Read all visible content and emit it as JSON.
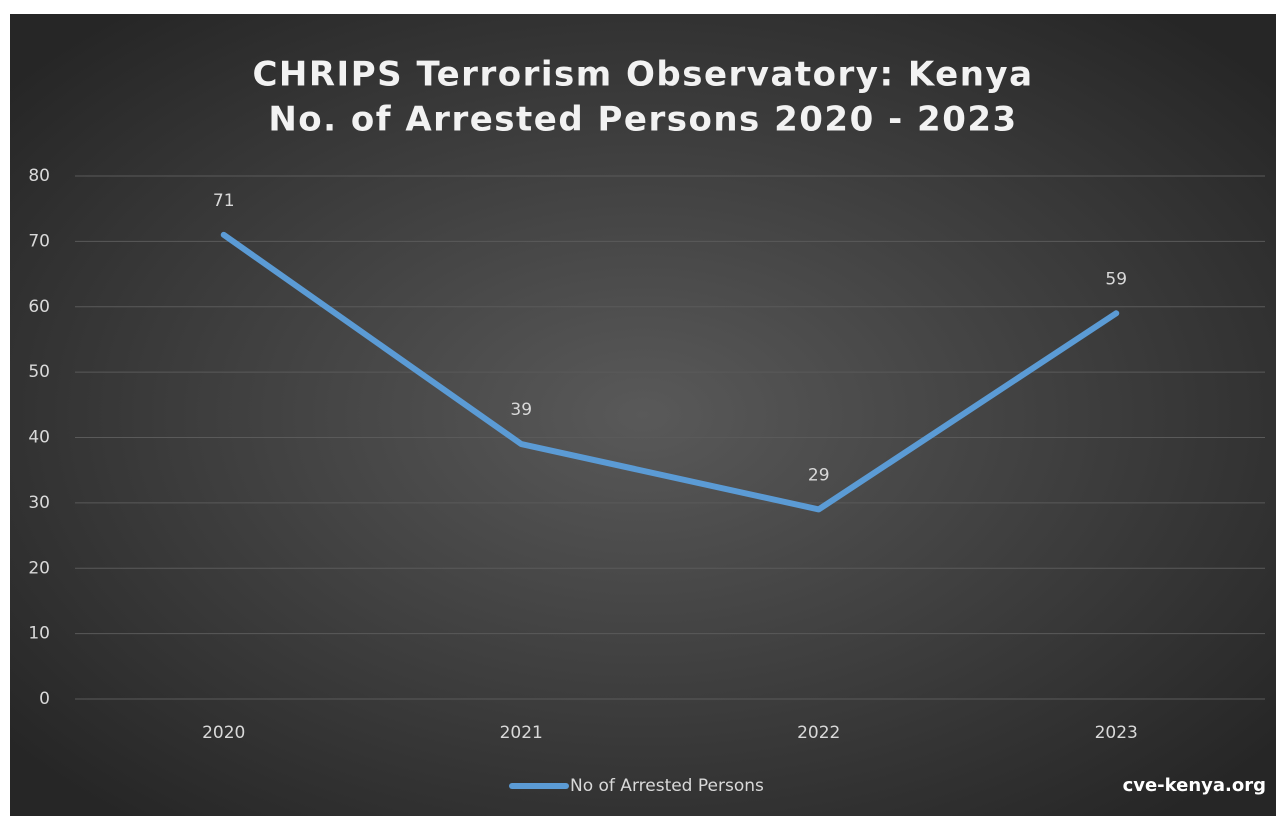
{
  "chart_data": {
    "type": "line",
    "title": [
      "CHRIPS Terrorism Observatory: Kenya",
      "No. of Arrested Persons 2020 - 2023"
    ],
    "categories": [
      "2020",
      "2021",
      "2022",
      "2023"
    ],
    "series": [
      {
        "name": "No of Arrested Persons",
        "color": "#5b9bd5",
        "values": [
          71,
          39,
          29,
          59
        ]
      }
    ],
    "ylim": [
      0,
      80
    ],
    "yticks": [
      0,
      10,
      20,
      30,
      40,
      50,
      60,
      70,
      80
    ],
    "grid": true,
    "legend": "bottom",
    "annotation": "cve-kenya.org"
  }
}
